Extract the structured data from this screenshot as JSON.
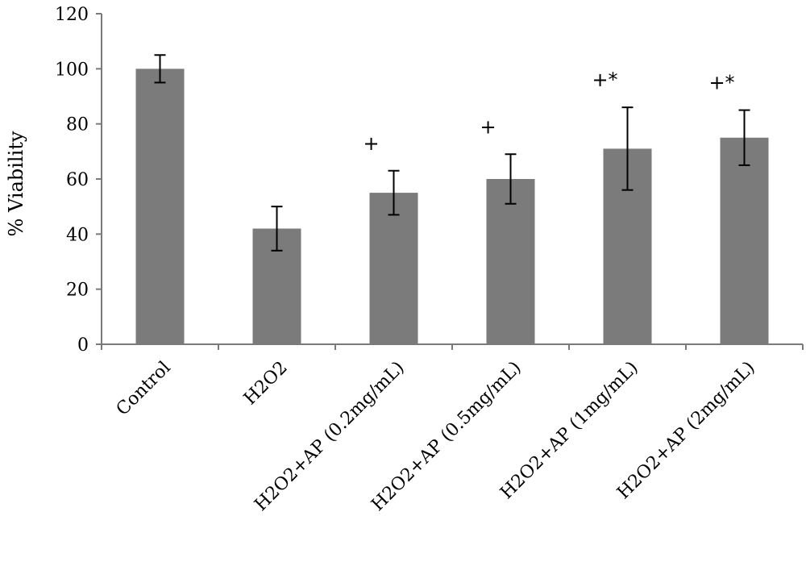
{
  "chart_data": {
    "type": "bar",
    "title": "",
    "xlabel": "",
    "ylabel": "% Viability",
    "ylim": [
      0,
      120
    ],
    "yticks": [
      0,
      20,
      40,
      60,
      80,
      100,
      120
    ],
    "grid": false,
    "categories": [
      "Control",
      "H2O2",
      "H2O2+AP (0.2mg/mL)",
      "H2O2+AP (0.5mg/mL)",
      "H2O2+AP (1mg/mL)",
      "H2O2+AP (2mg/mL)"
    ],
    "values": [
      100,
      42,
      55,
      60,
      71,
      75
    ],
    "error_low": [
      95,
      34,
      47,
      51,
      56,
      65
    ],
    "error_high": [
      105,
      50,
      63,
      69,
      86,
      85
    ],
    "annotations": [
      "",
      "",
      "+",
      "+",
      "+*",
      "+*"
    ],
    "bar_color": "#7b7b7b"
  }
}
